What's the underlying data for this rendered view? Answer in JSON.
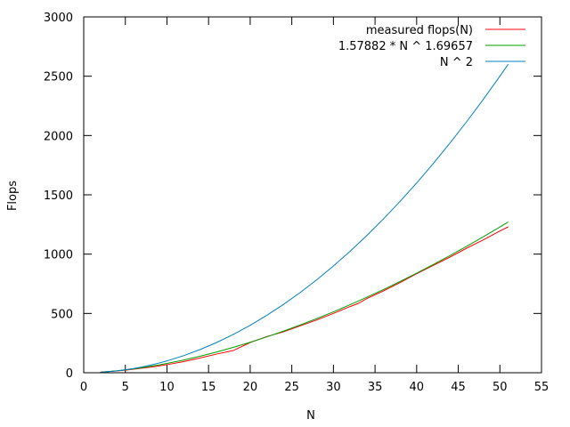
{
  "chart_data": {
    "type": "line",
    "title": "",
    "xlabel": "N",
    "ylabel": "Flops",
    "xlim": [
      0,
      55
    ],
    "ylim": [
      0,
      3000
    ],
    "xticks": [
      0,
      5,
      10,
      15,
      20,
      25,
      30,
      35,
      40,
      45,
      50,
      55
    ],
    "yticks": [
      0,
      500,
      1000,
      1500,
      2000,
      2500,
      3000
    ],
    "grid": false,
    "legend_position": "top-right",
    "series": [
      {
        "name": "measured flops(N)",
        "color": "#ff0000",
        "x": [
          2,
          3,
          4,
          5,
          6,
          7,
          8,
          9,
          10,
          12,
          14,
          16,
          18,
          20,
          22,
          24,
          26,
          28,
          30,
          32,
          33,
          34,
          36,
          38,
          40,
          42,
          44,
          46,
          48,
          50,
          51
        ],
        "y": [
          5,
          10,
          15,
          22,
          30,
          38,
          47,
          57,
          68,
          94,
          125,
          158,
          188,
          255,
          305,
          345,
          395,
          445,
          500,
          558,
          585,
          625,
          690,
          760,
          835,
          905,
          975,
          1050,
          1120,
          1195,
          1230
        ]
      },
      {
        "name": "1.57882 * N ^ 1.69657",
        "color": "#00a000",
        "x": [
          2,
          3,
          4,
          5,
          6,
          7,
          8,
          9,
          10,
          12,
          14,
          16,
          18,
          20,
          22,
          24,
          26,
          28,
          30,
          32,
          34,
          36,
          38,
          40,
          42,
          44,
          46,
          48,
          50,
          51
        ],
        "y": [
          5.1,
          10.5,
          16.9,
          24.4,
          33.0,
          42.4,
          54.6,
          65.8,
          78.6,
          107.2,
          139.5,
          175.3,
          214.4,
          256.7,
          302.2,
          350.7,
          402.1,
          456.4,
          513.5,
          573.3,
          635.9,
          701.1,
          768.8,
          839.3,
          912.3,
          987.9,
          1065.7,
          1145.9,
          1228.3,
          1270.5
        ]
      },
      {
        "name": "N ^ 2",
        "color": "#0080c0",
        "x": [
          2,
          3,
          4,
          5,
          6,
          7,
          8,
          9,
          10,
          12,
          14,
          16,
          18,
          20,
          22,
          24,
          26,
          28,
          30,
          32,
          34,
          36,
          38,
          40,
          42,
          44,
          46,
          48,
          50,
          51
        ],
        "y": [
          4,
          9,
          16,
          25,
          36,
          49,
          64,
          81,
          100,
          144,
          196,
          256,
          324,
          400,
          484,
          576,
          676,
          784,
          900,
          1024,
          1156,
          1296,
          1444,
          1600,
          1764,
          1936,
          2116,
          2304,
          2500,
          2601
        ]
      }
    ]
  }
}
